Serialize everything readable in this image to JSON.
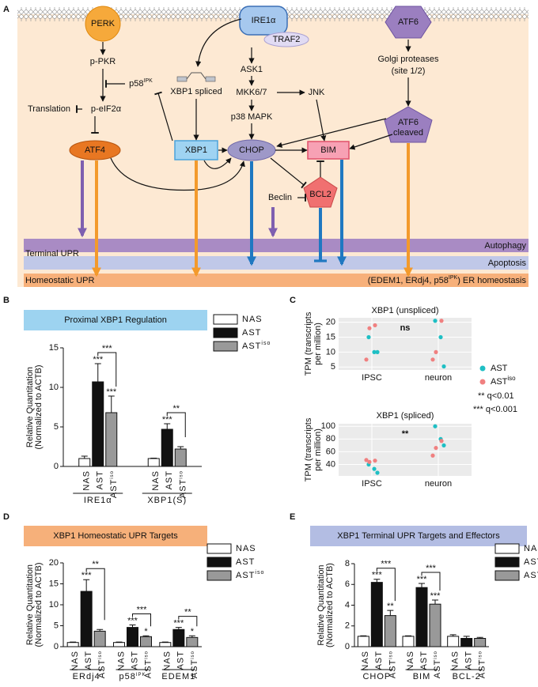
{
  "panel_labels": [
    "A",
    "B",
    "C",
    "D",
    "E"
  ],
  "diagram": {
    "perk": "PERK",
    "ire1": "IRE1α",
    "atf6": "ATF6",
    "traf2": "TRAF2",
    "p_pkr": "p-PKR",
    "p58": {
      "text": "p58",
      "sup": "IPK"
    },
    "translation": "Translation",
    "p_eif2a": "p-eIF2α",
    "atf4": "ATF4",
    "xbp1_spliced": "XBP1 spliced",
    "xbp1": "XBP1",
    "ask1": "ASK1",
    "mkk": "MKK6/7",
    "p38": "p38 MAPK",
    "jnk": "JNK",
    "chop": "CHOP",
    "bim": "BIM",
    "bcl2": "BCL2",
    "beclin": "Beclin",
    "golgi": [
      "Golgi proteases",
      "(site 1/2)"
    ],
    "atf6_cleaved": [
      "ATF6",
      "cleaved"
    ],
    "autophagy": "Autophagy",
    "terminal_upr": "Terminal UPR",
    "apoptosis": "Apoptosis",
    "homeostatic_upr": "Homeostatic UPR",
    "er_homeostasis": {
      "before": "(EDEM1, ERdj4, p58",
      "sup": "IPK",
      "after": ") ER homeostasis"
    }
  },
  "chart_data": [
    {
      "type": "bar",
      "title": "Proximal XBP1 Regulation",
      "header_color": "#9dd3f0",
      "ylabel": [
        "Relative Quantitation",
        "(Normalized to ACTB)"
      ],
      "groups": [
        "IRE1α",
        "XBP1(S)"
      ],
      "series": [
        {
          "name": "NAS",
          "color": "#ffffff",
          "values": [
            1.0,
            1.0
          ],
          "errors": [
            0.3,
            0.05
          ]
        },
        {
          "name": "AST",
          "color": "#111111",
          "values": [
            10.7,
            4.7
          ],
          "errors": [
            2.3,
            0.7
          ],
          "stars": [
            "***",
            "***"
          ]
        },
        {
          "name": "AST",
          "name_sup": "iso",
          "color": "#999999",
          "values": [
            6.8,
            2.2
          ],
          "errors": [
            2.1,
            0.3
          ],
          "stars": [
            "***",
            null
          ]
        }
      ],
      "brackets": [
        "***",
        "**"
      ],
      "ylim": [
        0,
        15
      ],
      "yticks": [
        0,
        5,
        10,
        15
      ]
    },
    {
      "type": "scatter",
      "subplots": [
        {
          "title": "XBP1 (unspliced)",
          "annotation": "ns",
          "ylabel": [
            "TPM (transcripts",
            "per million)"
          ],
          "categories": [
            "IPSC",
            "neuron"
          ],
          "series": [
            {
              "name": "AST",
              "color": "#1fbfc4",
              "values": [
                [
                  15,
                  10,
                  10
                ],
                [
                  20.5,
                  15,
                  5.2
                ]
              ]
            },
            {
              "name": "AST",
              "name_sup": "iso",
              "color": "#f08080",
              "values": [
                [
                  19,
                  18,
                  7.5
                ],
                [
                  20.5,
                  10,
                  7.5
                ]
              ]
            }
          ],
          "ylim": [
            4,
            21.5
          ],
          "yticks": [
            5,
            10,
            15,
            20
          ]
        },
        {
          "title": "XBP1 (spliced)",
          "annotation": "**",
          "ylabel": [
            "TPM (transcripts",
            "per million)"
          ],
          "categories": [
            "IPSC",
            "neuron"
          ],
          "series": [
            {
              "color": "#1fbfc4",
              "values": [
                [
                  40,
                  33,
                  27
                ],
                [
                  100,
                  80,
                  70
                ]
              ]
            },
            {
              "color": "#f08080",
              "values": [
                [
                  46,
                  44,
                  47
                ],
                [
                  77,
                  66,
                  54
                ]
              ]
            }
          ],
          "ylim": [
            22,
            104
          ],
          "yticks": [
            40,
            60,
            80,
            100
          ]
        }
      ],
      "notes": [
        "** q<0.01",
        "*** q<0.001"
      ]
    },
    {
      "type": "bar",
      "title": "XBP1 Homeostatic UPR Targets",
      "header_color": "#f6b07a",
      "ylabel": [
        "Relative Quantitation",
        "(Normalized to ACTB)"
      ],
      "groups": [
        "ERdj4",
        "p58",
        "EDEM1"
      ],
      "group_sups": [
        null,
        "IPK",
        null
      ],
      "series": [
        {
          "name": "NAS",
          "color": "#ffffff",
          "values": [
            1.0,
            1.0,
            1.0
          ],
          "errors": [
            0.1,
            0.1,
            0.1
          ]
        },
        {
          "name": "AST",
          "color": "#111111",
          "values": [
            13.2,
            4.6,
            4.1
          ],
          "errors": [
            2.8,
            0.6,
            0.5
          ],
          "stars": [
            "***",
            "***",
            "***"
          ]
        },
        {
          "name": "AST",
          "name_sup": "iso",
          "color": "#999999",
          "values": [
            3.7,
            2.4,
            2.2
          ],
          "errors": [
            0.4,
            0.2,
            0.4
          ],
          "stars": [
            null,
            "*",
            "*"
          ]
        }
      ],
      "brackets": [
        "**",
        "***",
        "**"
      ],
      "ylim": [
        0,
        20
      ],
      "yticks": [
        0,
        5,
        10,
        15,
        20
      ]
    },
    {
      "type": "bar",
      "title": "XBP1 Terminal UPR Targets and Effectors",
      "header_color": "#b3bde3",
      "ylabel": [
        "Relative Quantitation",
        "(Normalized to ACTB)"
      ],
      "groups": [
        "CHOP",
        "BIM",
        "BCL-2"
      ],
      "series": [
        {
          "name": "NAS",
          "color": "#ffffff",
          "values": [
            1.0,
            1.0,
            1.0
          ],
          "errors": [
            0.05,
            0.05,
            0.15
          ]
        },
        {
          "name": "AST",
          "color": "#111111",
          "values": [
            6.2,
            5.7,
            0.8
          ],
          "errors": [
            0.3,
            0.4,
            0.2
          ],
          "stars": [
            "***",
            "***",
            null
          ]
        },
        {
          "name": "AST",
          "name_sup": "iso",
          "color": "#999999",
          "values": [
            3.0,
            4.1,
            0.8
          ],
          "errors": [
            0.5,
            0.4,
            0.1
          ],
          "stars": [
            "**",
            "***",
            null
          ]
        }
      ],
      "brackets": [
        "***",
        "***",
        null
      ],
      "ylim": [
        0,
        8
      ],
      "yticks": [
        0,
        2,
        4,
        6,
        8
      ]
    }
  ]
}
